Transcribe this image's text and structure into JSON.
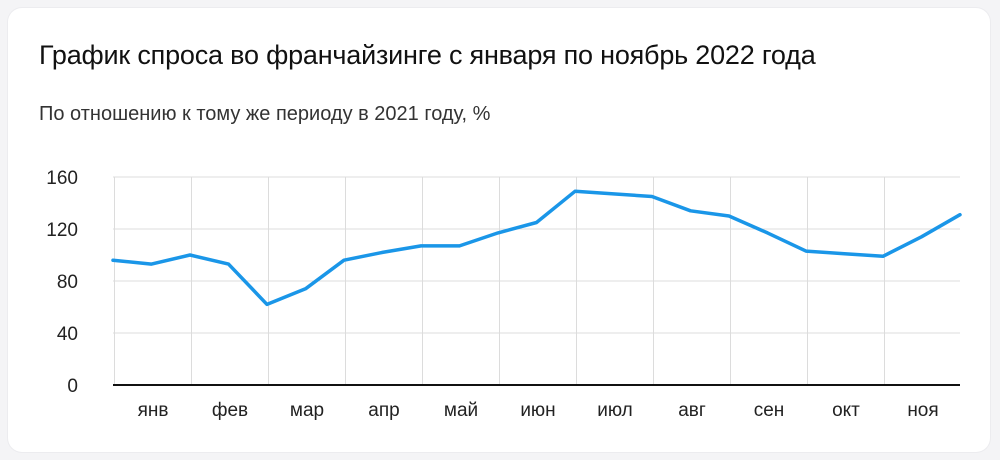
{
  "header": {
    "title": "График спроса во франчайзинге с января по ноябрь 2022 года",
    "subtitle": "По отношению к тому же периоду в 2021 году, %"
  },
  "colors": {
    "line": "#1a96e8",
    "grid": "#dcdcdc",
    "axis": "#111111"
  },
  "chart_data": {
    "type": "line",
    "title": "График спроса во франчайзинге с января по ноябрь 2022 года",
    "subtitle": "По отношению к тому же периоду в 2021 году, %",
    "xlabel": "",
    "ylabel": "",
    "ylim": [
      0,
      160
    ],
    "yticks": [
      0,
      40,
      80,
      120,
      160
    ],
    "categories": [
      "янв",
      "фев",
      "мар",
      "апр",
      "май",
      "июн",
      "июл",
      "авг",
      "сен",
      "окт",
      "ноя"
    ],
    "grid": "vertical and horizontal",
    "series": [
      {
        "x": [
          0,
          0.5,
          1,
          1.5,
          2,
          2.5,
          3,
          3.5,
          4,
          4.5,
          5,
          5.5,
          6,
          6.5,
          7,
          7.5,
          8,
          8.5,
          9,
          9.5,
          10,
          10.5,
          11
        ],
        "values": [
          96,
          93,
          100,
          93,
          62,
          74,
          96,
          102,
          107,
          107,
          117,
          125,
          149,
          147,
          145,
          134,
          130,
          117,
          103,
          101,
          99,
          114,
          131
        ]
      }
    ]
  }
}
